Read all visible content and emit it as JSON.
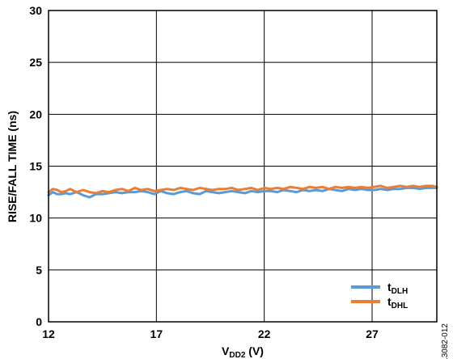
{
  "chart_data": {
    "type": "line",
    "title": "",
    "xlabel": {
      "base": "V",
      "sub": "DD2",
      "rest": " (V)"
    },
    "ylabel": "RISE/FALL TIME (ns)",
    "xlim": [
      12,
      30
    ],
    "ylim": [
      0,
      30
    ],
    "xticks": [
      12,
      17,
      22,
      27
    ],
    "yticks": [
      0,
      5,
      10,
      15,
      20,
      25,
      30
    ],
    "grid": true,
    "legend_position": "bottom-right",
    "figure_id": "13082-012",
    "series": [
      {
        "name": "tDLH",
        "legend_base": "t",
        "legend_sub": "DLH",
        "color": "#5b9bd5",
        "x": [
          12.0,
          12.2,
          12.4,
          12.6,
          12.8,
          13.0,
          13.3,
          13.6,
          13.9,
          14.2,
          14.5,
          14.8,
          15.1,
          15.4,
          15.7,
          16.0,
          16.3,
          16.6,
          16.9,
          17.2,
          17.5,
          17.8,
          18.1,
          18.4,
          18.7,
          19.0,
          19.3,
          19.6,
          19.9,
          20.2,
          20.5,
          20.8,
          21.1,
          21.4,
          21.7,
          22.0,
          22.3,
          22.6,
          22.9,
          23.2,
          23.5,
          23.8,
          24.1,
          24.4,
          24.7,
          25.0,
          25.3,
          25.6,
          25.9,
          26.2,
          26.5,
          26.8,
          27.1,
          27.4,
          27.7,
          28.0,
          28.3,
          28.6,
          28.9,
          29.2,
          29.5,
          29.8,
          30.0
        ],
        "y": [
          12.2,
          12.5,
          12.3,
          12.3,
          12.4,
          12.3,
          12.5,
          12.2,
          12.0,
          12.3,
          12.3,
          12.4,
          12.5,
          12.4,
          12.5,
          12.5,
          12.6,
          12.5,
          12.3,
          12.6,
          12.4,
          12.3,
          12.5,
          12.6,
          12.4,
          12.3,
          12.6,
          12.5,
          12.4,
          12.5,
          12.6,
          12.5,
          12.4,
          12.6,
          12.5,
          12.6,
          12.6,
          12.5,
          12.7,
          12.6,
          12.5,
          12.7,
          12.6,
          12.7,
          12.6,
          12.8,
          12.7,
          12.6,
          12.8,
          12.7,
          12.8,
          12.7,
          12.7,
          12.8,
          12.7,
          12.8,
          12.8,
          12.9,
          12.9,
          12.8,
          12.9,
          12.9,
          12.9
        ]
      },
      {
        "name": "tDHL",
        "legend_base": "t",
        "legend_sub": "DHL",
        "color": "#ed7d31",
        "x": [
          12.0,
          12.2,
          12.4,
          12.6,
          12.8,
          13.0,
          13.3,
          13.6,
          13.9,
          14.2,
          14.5,
          14.8,
          15.1,
          15.4,
          15.7,
          16.0,
          16.3,
          16.6,
          16.9,
          17.2,
          17.5,
          17.8,
          18.1,
          18.4,
          18.7,
          19.0,
          19.3,
          19.6,
          19.9,
          20.2,
          20.5,
          20.8,
          21.1,
          21.4,
          21.7,
          22.0,
          22.3,
          22.6,
          22.9,
          23.2,
          23.5,
          23.8,
          24.1,
          24.4,
          24.7,
          25.0,
          25.3,
          25.6,
          25.9,
          26.2,
          26.5,
          26.8,
          27.1,
          27.4,
          27.7,
          28.0,
          28.3,
          28.6,
          28.9,
          29.2,
          29.5,
          29.8,
          30.0
        ],
        "y": [
          12.5,
          12.8,
          12.7,
          12.5,
          12.6,
          12.8,
          12.5,
          12.7,
          12.5,
          12.4,
          12.6,
          12.5,
          12.7,
          12.8,
          12.6,
          12.9,
          12.7,
          12.8,
          12.6,
          12.7,
          12.8,
          12.7,
          12.9,
          12.8,
          12.7,
          12.9,
          12.8,
          12.7,
          12.8,
          12.8,
          12.9,
          12.7,
          12.8,
          12.9,
          12.7,
          12.9,
          12.8,
          12.9,
          12.8,
          13.0,
          12.9,
          12.8,
          13.0,
          12.9,
          13.0,
          12.8,
          13.0,
          12.9,
          13.0,
          12.9,
          13.0,
          12.9,
          13.0,
          13.1,
          12.9,
          13.0,
          13.1,
          13.0,
          13.1,
          13.0,
          13.1,
          13.1,
          13.0
        ]
      }
    ]
  }
}
